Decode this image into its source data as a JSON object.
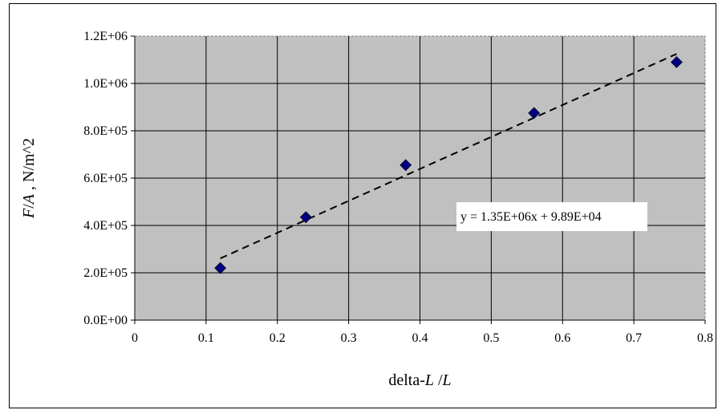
{
  "chart_data": {
    "type": "scatter",
    "xlabel": {
      "prefix": "delta-",
      "var1": "L",
      "sep": " /",
      "var2": "L"
    },
    "ylabel": {
      "var1": "F",
      "sep": "/",
      "var2": "A",
      "suffix": " , N/m^2"
    },
    "x_ticks": [
      "0",
      "0.1",
      "0.2",
      "0.3",
      "0.4",
      "0.5",
      "0.6",
      "0.7",
      "0.8"
    ],
    "y_ticks": [
      "0.0E+00",
      "2.0E+05",
      "4.0E+05",
      "6.0E+05",
      "8.0E+05",
      "1.0E+06",
      "1.2E+06"
    ],
    "xlim": [
      0,
      0.8
    ],
    "ylim": [
      0,
      1200000
    ],
    "grid": true,
    "background": "#c0c0c0",
    "marker_color": "#000080",
    "series": [
      {
        "x": [
          0.12,
          0.24,
          0.38,
          0.56,
          0.76
        ],
        "y": [
          220000,
          435000,
          655000,
          875000,
          1090000
        ]
      }
    ],
    "trendline": {
      "slope": 1350000,
      "intercept": 98900,
      "x_range": [
        0.12,
        0.76
      ],
      "equation": "y = 1.35E+06x + 9.89E+04"
    }
  }
}
